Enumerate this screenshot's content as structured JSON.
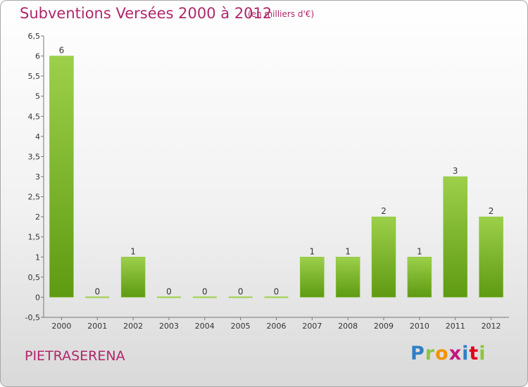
{
  "chart_data": {
    "type": "bar",
    "title": "Subventions Versées 2000 à 2012",
    "subtitle": "(en milliers d'€)",
    "categories": [
      "2000",
      "2001",
      "2002",
      "2003",
      "2004",
      "2005",
      "2006",
      "2007",
      "2008",
      "2009",
      "2010",
      "2011",
      "2012"
    ],
    "values": [
      6,
      0,
      1,
      0,
      0,
      0,
      0,
      1,
      1,
      2,
      1,
      3,
      2
    ],
    "data_labels": [
      "6",
      "0",
      "1",
      "0",
      "0",
      "0",
      "0",
      "1",
      "1",
      "2",
      "1",
      "3",
      "2"
    ],
    "ylim": [
      -0.5,
      6.5
    ],
    "yticks": [
      "-0,5",
      "0",
      "0,5",
      "1",
      "1,5",
      "2",
      "2,5",
      "3",
      "3,5",
      "4",
      "4,5",
      "5",
      "5,5",
      "6",
      "6,5"
    ],
    "grid": false,
    "bar_color_top": "#9dd04a",
    "bar_color_bottom": "#5e9a12"
  },
  "footer": {
    "commune": "PIETRASERENA",
    "logo_parts": [
      "P",
      "r",
      "o",
      "x",
      "i",
      "t",
      "i"
    ]
  },
  "colors": {
    "title": "#b0266b",
    "axis": "#777777"
  }
}
